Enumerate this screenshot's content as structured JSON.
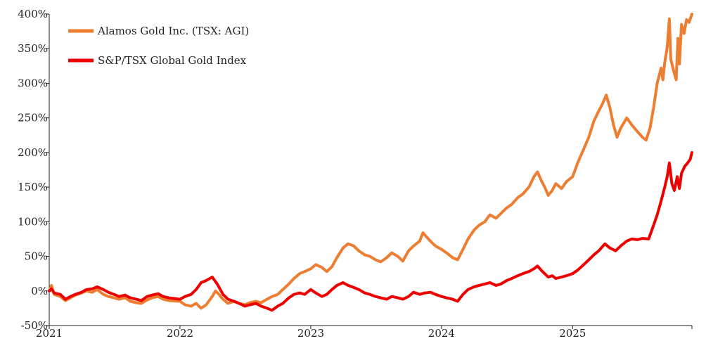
{
  "chart_data": {
    "type": "line",
    "title": "",
    "xlabel": "",
    "ylabel": "",
    "x_ticks": [
      "2021",
      "2022",
      "2023",
      "2024",
      "2025"
    ],
    "y_ticks": [
      "-50%",
      "0%",
      "50%",
      "100%",
      "150%",
      "200%",
      "250%",
      "300%",
      "350%",
      "400%"
    ],
    "xlim": [
      "2021-01-01",
      "2025-11-30"
    ],
    "ylim": [
      -50,
      400
    ],
    "grid": false,
    "legend_position": "top-left",
    "series": [
      {
        "name": "Alamos Gold Inc. (TSX: AGI)",
        "color": "#ED7D31",
        "points": [
          [
            "2021-01-01",
            0
          ],
          [
            "2021-01-07",
            8
          ],
          [
            "2021-01-15",
            -5
          ],
          [
            "2021-02-01",
            -8
          ],
          [
            "2021-02-15",
            -14
          ],
          [
            "2021-03-01",
            -10
          ],
          [
            "2021-03-15",
            -6
          ],
          [
            "2021-04-01",
            -3
          ],
          [
            "2021-04-15",
            0
          ],
          [
            "2021-05-01",
            -2
          ],
          [
            "2021-05-15",
            2
          ],
          [
            "2021-06-01",
            -5
          ],
          [
            "2021-06-15",
            -8
          ],
          [
            "2021-07-01",
            -10
          ],
          [
            "2021-07-15",
            -12
          ],
          [
            "2021-08-01",
            -10
          ],
          [
            "2021-08-15",
            -15
          ],
          [
            "2021-09-01",
            -17
          ],
          [
            "2021-09-15",
            -18
          ],
          [
            "2021-10-01",
            -13
          ],
          [
            "2021-10-15",
            -10
          ],
          [
            "2021-11-01",
            -8
          ],
          [
            "2021-11-15",
            -12
          ],
          [
            "2021-12-01",
            -14
          ],
          [
            "2022-01-01",
            -15
          ],
          [
            "2022-01-15",
            -20
          ],
          [
            "2022-02-01",
            -22
          ],
          [
            "2022-02-15",
            -18
          ],
          [
            "2022-03-01",
            -25
          ],
          [
            "2022-03-15",
            -20
          ],
          [
            "2022-04-01",
            -8
          ],
          [
            "2022-04-10",
            0
          ],
          [
            "2022-04-20",
            -5
          ],
          [
            "2022-05-01",
            -12
          ],
          [
            "2022-05-15",
            -18
          ],
          [
            "2022-06-01",
            -15
          ],
          [
            "2022-06-15",
            -18
          ],
          [
            "2022-07-01",
            -20
          ],
          [
            "2022-07-15",
            -17
          ],
          [
            "2022-08-01",
            -15
          ],
          [
            "2022-08-15",
            -17
          ],
          [
            "2022-09-01",
            -12
          ],
          [
            "2022-09-15",
            -8
          ],
          [
            "2022-10-01",
            -5
          ],
          [
            "2022-10-15",
            2
          ],
          [
            "2022-11-01",
            10
          ],
          [
            "2022-11-15",
            18
          ],
          [
            "2022-12-01",
            25
          ],
          [
            "2022-12-15",
            28
          ],
          [
            "2023-01-01",
            32
          ],
          [
            "2023-01-15",
            38
          ],
          [
            "2023-02-01",
            34
          ],
          [
            "2023-02-15",
            28
          ],
          [
            "2023-03-01",
            35
          ],
          [
            "2023-03-15",
            48
          ],
          [
            "2023-04-01",
            62
          ],
          [
            "2023-04-15",
            68
          ],
          [
            "2023-05-01",
            65
          ],
          [
            "2023-05-15",
            58
          ],
          [
            "2023-06-01",
            52
          ],
          [
            "2023-06-15",
            50
          ],
          [
            "2023-07-01",
            45
          ],
          [
            "2023-07-15",
            42
          ],
          [
            "2023-08-01",
            48
          ],
          [
            "2023-08-15",
            55
          ],
          [
            "2023-09-01",
            50
          ],
          [
            "2023-09-15",
            43
          ],
          [
            "2023-10-01",
            58
          ],
          [
            "2023-10-15",
            65
          ],
          [
            "2023-11-01",
            72
          ],
          [
            "2023-11-10",
            84
          ],
          [
            "2023-11-20",
            78
          ],
          [
            "2023-12-01",
            72
          ],
          [
            "2023-12-15",
            65
          ],
          [
            "2024-01-01",
            60
          ],
          [
            "2024-01-15",
            55
          ],
          [
            "2024-02-01",
            48
          ],
          [
            "2024-02-15",
            45
          ],
          [
            "2024-03-01",
            60
          ],
          [
            "2024-03-15",
            75
          ],
          [
            "2024-04-01",
            88
          ],
          [
            "2024-04-15",
            95
          ],
          [
            "2024-05-01",
            100
          ],
          [
            "2024-05-15",
            110
          ],
          [
            "2024-06-01",
            105
          ],
          [
            "2024-06-15",
            112
          ],
          [
            "2024-07-01",
            120
          ],
          [
            "2024-07-15",
            125
          ],
          [
            "2024-08-01",
            135
          ],
          [
            "2024-08-15",
            140
          ],
          [
            "2024-09-01",
            150
          ],
          [
            "2024-09-15",
            165
          ],
          [
            "2024-09-25",
            172
          ],
          [
            "2024-10-05",
            160
          ],
          [
            "2024-10-15",
            150
          ],
          [
            "2024-10-25",
            138
          ],
          [
            "2024-11-05",
            145
          ],
          [
            "2024-11-15",
            155
          ],
          [
            "2024-12-01",
            148
          ],
          [
            "2024-12-15",
            158
          ],
          [
            "2025-01-01",
            165
          ],
          [
            "2025-01-15",
            185
          ],
          [
            "2025-02-01",
            205
          ],
          [
            "2025-02-15",
            222
          ],
          [
            "2025-03-01",
            245
          ],
          [
            "2025-03-15",
            260
          ],
          [
            "2025-03-25",
            270
          ],
          [
            "2025-04-05",
            283
          ],
          [
            "2025-04-15",
            265
          ],
          [
            "2025-04-25",
            240
          ],
          [
            "2025-05-05",
            222
          ],
          [
            "2025-05-15",
            235
          ],
          [
            "2025-06-01",
            250
          ],
          [
            "2025-06-15",
            240
          ],
          [
            "2025-07-01",
            230
          ],
          [
            "2025-07-15",
            222
          ],
          [
            "2025-07-25",
            218
          ],
          [
            "2025-08-05",
            235
          ],
          [
            "2025-08-15",
            265
          ],
          [
            "2025-08-25",
            300
          ],
          [
            "2025-09-05",
            322
          ],
          [
            "2025-09-10",
            305
          ],
          [
            "2025-09-15",
            330
          ],
          [
            "2025-09-22",
            352
          ],
          [
            "2025-09-28",
            393
          ],
          [
            "2025-10-02",
            335
          ],
          [
            "2025-10-10",
            318
          ],
          [
            "2025-10-17",
            305
          ],
          [
            "2025-10-22",
            365
          ],
          [
            "2025-10-26",
            328
          ],
          [
            "2025-11-01",
            385
          ],
          [
            "2025-11-08",
            372
          ],
          [
            "2025-11-15",
            392
          ],
          [
            "2025-11-22",
            388
          ],
          [
            "2025-11-30",
            400
          ]
        ]
      },
      {
        "name": "S&P/TSX Global Gold Index",
        "color": "#EE0000",
        "points": [
          [
            "2021-01-01",
            0
          ],
          [
            "2021-01-07",
            3
          ],
          [
            "2021-01-15",
            -3
          ],
          [
            "2021-02-01",
            -5
          ],
          [
            "2021-02-15",
            -12
          ],
          [
            "2021-03-01",
            -8
          ],
          [
            "2021-03-15",
            -5
          ],
          [
            "2021-04-01",
            -2
          ],
          [
            "2021-04-15",
            2
          ],
          [
            "2021-05-01",
            3
          ],
          [
            "2021-05-15",
            6
          ],
          [
            "2021-06-01",
            2
          ],
          [
            "2021-06-15",
            -2
          ],
          [
            "2021-07-01",
            -5
          ],
          [
            "2021-07-15",
            -8
          ],
          [
            "2021-08-01",
            -6
          ],
          [
            "2021-08-15",
            -10
          ],
          [
            "2021-09-01",
            -12
          ],
          [
            "2021-09-15",
            -14
          ],
          [
            "2021-10-01",
            -8
          ],
          [
            "2021-10-15",
            -6
          ],
          [
            "2021-11-01",
            -4
          ],
          [
            "2021-11-15",
            -8
          ],
          [
            "2021-12-01",
            -10
          ],
          [
            "2022-01-01",
            -12
          ],
          [
            "2022-01-15",
            -8
          ],
          [
            "2022-02-01",
            -5
          ],
          [
            "2022-02-15",
            2
          ],
          [
            "2022-03-01",
            12
          ],
          [
            "2022-03-15",
            15
          ],
          [
            "2022-04-01",
            20
          ],
          [
            "2022-04-15",
            10
          ],
          [
            "2022-05-01",
            -5
          ],
          [
            "2022-05-15",
            -12
          ],
          [
            "2022-06-01",
            -15
          ],
          [
            "2022-06-15",
            -18
          ],
          [
            "2022-07-01",
            -22
          ],
          [
            "2022-07-15",
            -20
          ],
          [
            "2022-08-01",
            -18
          ],
          [
            "2022-08-15",
            -22
          ],
          [
            "2022-09-01",
            -25
          ],
          [
            "2022-09-15",
            -28
          ],
          [
            "2022-10-01",
            -22
          ],
          [
            "2022-10-15",
            -18
          ],
          [
            "2022-11-01",
            -10
          ],
          [
            "2022-11-15",
            -5
          ],
          [
            "2022-12-01",
            -3
          ],
          [
            "2022-12-15",
            -5
          ],
          [
            "2023-01-01",
            2
          ],
          [
            "2023-01-15",
            -3
          ],
          [
            "2023-02-01",
            -8
          ],
          [
            "2023-02-15",
            -5
          ],
          [
            "2023-03-01",
            2
          ],
          [
            "2023-03-15",
            8
          ],
          [
            "2023-04-01",
            12
          ],
          [
            "2023-04-15",
            8
          ],
          [
            "2023-05-01",
            5
          ],
          [
            "2023-05-15",
            2
          ],
          [
            "2023-06-01",
            -3
          ],
          [
            "2023-06-15",
            -5
          ],
          [
            "2023-07-01",
            -8
          ],
          [
            "2023-07-15",
            -10
          ],
          [
            "2023-08-01",
            -12
          ],
          [
            "2023-08-15",
            -8
          ],
          [
            "2023-09-01",
            -10
          ],
          [
            "2023-09-15",
            -12
          ],
          [
            "2023-10-01",
            -8
          ],
          [
            "2023-10-15",
            -2
          ],
          [
            "2023-11-01",
            -5
          ],
          [
            "2023-11-15",
            -3
          ],
          [
            "2023-12-01",
            -2
          ],
          [
            "2023-12-15",
            -5
          ],
          [
            "2024-01-01",
            -8
          ],
          [
            "2024-01-15",
            -10
          ],
          [
            "2024-02-01",
            -12
          ],
          [
            "2024-02-15",
            -15
          ],
          [
            "2024-03-01",
            -5
          ],
          [
            "2024-03-15",
            2
          ],
          [
            "2024-04-01",
            6
          ],
          [
            "2024-04-15",
            8
          ],
          [
            "2024-05-01",
            10
          ],
          [
            "2024-05-15",
            12
          ],
          [
            "2024-06-01",
            8
          ],
          [
            "2024-06-15",
            10
          ],
          [
            "2024-07-01",
            15
          ],
          [
            "2024-07-15",
            18
          ],
          [
            "2024-08-01",
            22
          ],
          [
            "2024-08-15",
            25
          ],
          [
            "2024-09-01",
            28
          ],
          [
            "2024-09-15",
            32
          ],
          [
            "2024-09-25",
            36
          ],
          [
            "2024-10-05",
            30
          ],
          [
            "2024-10-15",
            25
          ],
          [
            "2024-10-25",
            20
          ],
          [
            "2024-11-05",
            22
          ],
          [
            "2024-11-15",
            18
          ],
          [
            "2024-12-01",
            20
          ],
          [
            "2024-12-15",
            22
          ],
          [
            "2025-01-01",
            25
          ],
          [
            "2025-01-15",
            30
          ],
          [
            "2025-02-01",
            38
          ],
          [
            "2025-02-15",
            45
          ],
          [
            "2025-03-01",
            52
          ],
          [
            "2025-03-15",
            58
          ],
          [
            "2025-04-01",
            68
          ],
          [
            "2025-04-15",
            62
          ],
          [
            "2025-05-01",
            58
          ],
          [
            "2025-05-15",
            65
          ],
          [
            "2025-06-01",
            72
          ],
          [
            "2025-06-15",
            75
          ],
          [
            "2025-07-01",
            74
          ],
          [
            "2025-07-15",
            76
          ],
          [
            "2025-08-01",
            75
          ],
          [
            "2025-08-15",
            95
          ],
          [
            "2025-08-25",
            110
          ],
          [
            "2025-09-05",
            130
          ],
          [
            "2025-09-15",
            150
          ],
          [
            "2025-09-22",
            165
          ],
          [
            "2025-09-28",
            185
          ],
          [
            "2025-10-05",
            155
          ],
          [
            "2025-10-12",
            145
          ],
          [
            "2025-10-20",
            165
          ],
          [
            "2025-10-26",
            148
          ],
          [
            "2025-11-01",
            170
          ],
          [
            "2025-11-10",
            180
          ],
          [
            "2025-11-18",
            185
          ],
          [
            "2025-11-25",
            190
          ],
          [
            "2025-11-30",
            200
          ]
        ]
      }
    ]
  }
}
